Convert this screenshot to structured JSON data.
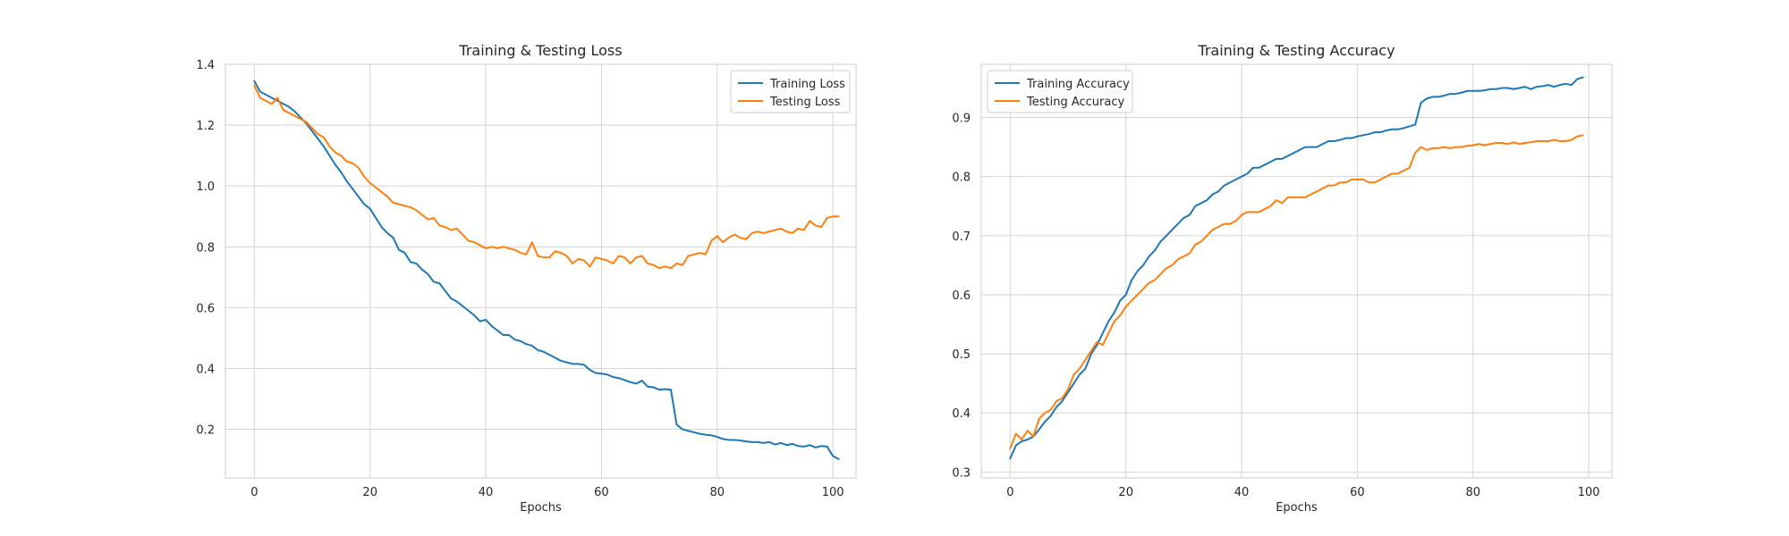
{
  "chart_data": [
    {
      "type": "line",
      "title": "Training & Testing Loss",
      "xlabel": "Epochs",
      "ylabel": "",
      "xlim": [
        -5,
        104
      ],
      "ylim": [
        0.04,
        1.4
      ],
      "xticks": [
        0,
        20,
        40,
        60,
        80,
        100
      ],
      "yticks": [
        0.2,
        0.4,
        0.6,
        0.8,
        1.0,
        1.2,
        1.4
      ],
      "ytick_format": 1,
      "grid": true,
      "legend_position": "upper-right",
      "series": [
        {
          "name": "Training Loss",
          "color": "#1f77b4",
          "values": [
            1.345,
            1.31,
            1.3,
            1.29,
            1.28,
            1.27,
            1.26,
            1.245,
            1.225,
            1.205,
            1.18,
            1.155,
            1.13,
            1.1,
            1.07,
            1.045,
            1.015,
            0.99,
            0.965,
            0.94,
            0.925,
            0.895,
            0.865,
            0.845,
            0.83,
            0.79,
            0.78,
            0.75,
            0.745,
            0.725,
            0.71,
            0.685,
            0.68,
            0.655,
            0.63,
            0.62,
            0.605,
            0.59,
            0.575,
            0.555,
            0.56,
            0.54,
            0.525,
            0.51,
            0.51,
            0.495,
            0.49,
            0.48,
            0.475,
            0.46,
            0.455,
            0.445,
            0.435,
            0.425,
            0.42,
            0.415,
            0.415,
            0.412,
            0.395,
            0.385,
            0.383,
            0.38,
            0.372,
            0.368,
            0.362,
            0.355,
            0.35,
            0.36,
            0.34,
            0.338,
            0.33,
            0.332,
            0.33,
            0.215,
            0.2,
            0.195,
            0.19,
            0.185,
            0.182,
            0.18,
            0.175,
            0.168,
            0.165,
            0.165,
            0.163,
            0.16,
            0.158,
            0.158,
            0.155,
            0.158,
            0.15,
            0.155,
            0.148,
            0.152,
            0.145,
            0.143,
            0.148,
            0.14,
            0.145,
            0.143,
            0.112,
            0.102
          ]
        },
        {
          "name": "Testing Loss",
          "color": "#ff7f0e",
          "values": [
            1.33,
            1.29,
            1.28,
            1.27,
            1.29,
            1.25,
            1.24,
            1.23,
            1.22,
            1.21,
            1.19,
            1.17,
            1.16,
            1.13,
            1.11,
            1.1,
            1.08,
            1.075,
            1.06,
            1.03,
            1.01,
            0.995,
            0.98,
            0.965,
            0.945,
            0.94,
            0.935,
            0.93,
            0.92,
            0.905,
            0.89,
            0.895,
            0.87,
            0.865,
            0.855,
            0.86,
            0.84,
            0.82,
            0.815,
            0.805,
            0.795,
            0.8,
            0.795,
            0.8,
            0.795,
            0.79,
            0.78,
            0.775,
            0.815,
            0.77,
            0.765,
            0.765,
            0.785,
            0.78,
            0.77,
            0.745,
            0.76,
            0.755,
            0.735,
            0.765,
            0.76,
            0.755,
            0.745,
            0.77,
            0.765,
            0.745,
            0.765,
            0.77,
            0.745,
            0.74,
            0.73,
            0.735,
            0.73,
            0.745,
            0.74,
            0.77,
            0.775,
            0.78,
            0.775,
            0.82,
            0.835,
            0.815,
            0.83,
            0.84,
            0.83,
            0.825,
            0.845,
            0.85,
            0.845,
            0.85,
            0.855,
            0.86,
            0.85,
            0.845,
            0.86,
            0.855,
            0.885,
            0.87,
            0.865,
            0.895,
            0.9,
            0.9
          ]
        }
      ]
    },
    {
      "type": "line",
      "title": "Training & Testing Accuracy",
      "xlabel": "Epochs",
      "ylabel": "",
      "xlim": [
        -5,
        104
      ],
      "ylim": [
        0.29,
        0.99
      ],
      "xticks": [
        0,
        20,
        40,
        60,
        80,
        100
      ],
      "yticks": [
        0.3,
        0.4,
        0.5,
        0.6,
        0.7,
        0.8,
        0.9
      ],
      "ytick_format": 1,
      "grid": true,
      "legend_position": "upper-left",
      "series": [
        {
          "name": "Training Accuracy",
          "color": "#1f77b4",
          "values": [
            0.323,
            0.345,
            0.352,
            0.355,
            0.36,
            0.372,
            0.385,
            0.395,
            0.41,
            0.42,
            0.435,
            0.45,
            0.465,
            0.475,
            0.5,
            0.515,
            0.535,
            0.555,
            0.57,
            0.59,
            0.6,
            0.625,
            0.64,
            0.65,
            0.665,
            0.675,
            0.69,
            0.7,
            0.71,
            0.72,
            0.73,
            0.735,
            0.75,
            0.755,
            0.76,
            0.77,
            0.775,
            0.785,
            0.79,
            0.795,
            0.8,
            0.805,
            0.815,
            0.815,
            0.82,
            0.825,
            0.83,
            0.83,
            0.835,
            0.84,
            0.845,
            0.85,
            0.85,
            0.85,
            0.855,
            0.86,
            0.86,
            0.862,
            0.865,
            0.865,
            0.868,
            0.87,
            0.872,
            0.875,
            0.875,
            0.878,
            0.88,
            0.88,
            0.882,
            0.885,
            0.888,
            0.925,
            0.932,
            0.935,
            0.935,
            0.937,
            0.94,
            0.94,
            0.942,
            0.945,
            0.945,
            0.945,
            0.946,
            0.948,
            0.948,
            0.95,
            0.95,
            0.948,
            0.95,
            0.952,
            0.948,
            0.952,
            0.953,
            0.955,
            0.952,
            0.955,
            0.957,
            0.955,
            0.965,
            0.968
          ]
        },
        {
          "name": "Testing Accuracy",
          "color": "#ff7f0e",
          "values": [
            0.34,
            0.365,
            0.355,
            0.37,
            0.36,
            0.39,
            0.4,
            0.405,
            0.42,
            0.425,
            0.44,
            0.465,
            0.475,
            0.49,
            0.505,
            0.52,
            0.515,
            0.535,
            0.555,
            0.565,
            0.58,
            0.59,
            0.6,
            0.61,
            0.62,
            0.625,
            0.635,
            0.645,
            0.65,
            0.66,
            0.665,
            0.67,
            0.685,
            0.69,
            0.7,
            0.71,
            0.715,
            0.72,
            0.72,
            0.725,
            0.735,
            0.74,
            0.74,
            0.74,
            0.745,
            0.75,
            0.76,
            0.755,
            0.765,
            0.765,
            0.765,
            0.765,
            0.77,
            0.775,
            0.78,
            0.785,
            0.785,
            0.79,
            0.79,
            0.795,
            0.795,
            0.795,
            0.79,
            0.79,
            0.795,
            0.8,
            0.805,
            0.805,
            0.81,
            0.815,
            0.84,
            0.85,
            0.845,
            0.848,
            0.848,
            0.85,
            0.848,
            0.85,
            0.85,
            0.852,
            0.853,
            0.855,
            0.853,
            0.855,
            0.857,
            0.857,
            0.855,
            0.858,
            0.855,
            0.857,
            0.858,
            0.86,
            0.86,
            0.86,
            0.862,
            0.86,
            0.86,
            0.862,
            0.868,
            0.87
          ]
        }
      ]
    }
  ]
}
